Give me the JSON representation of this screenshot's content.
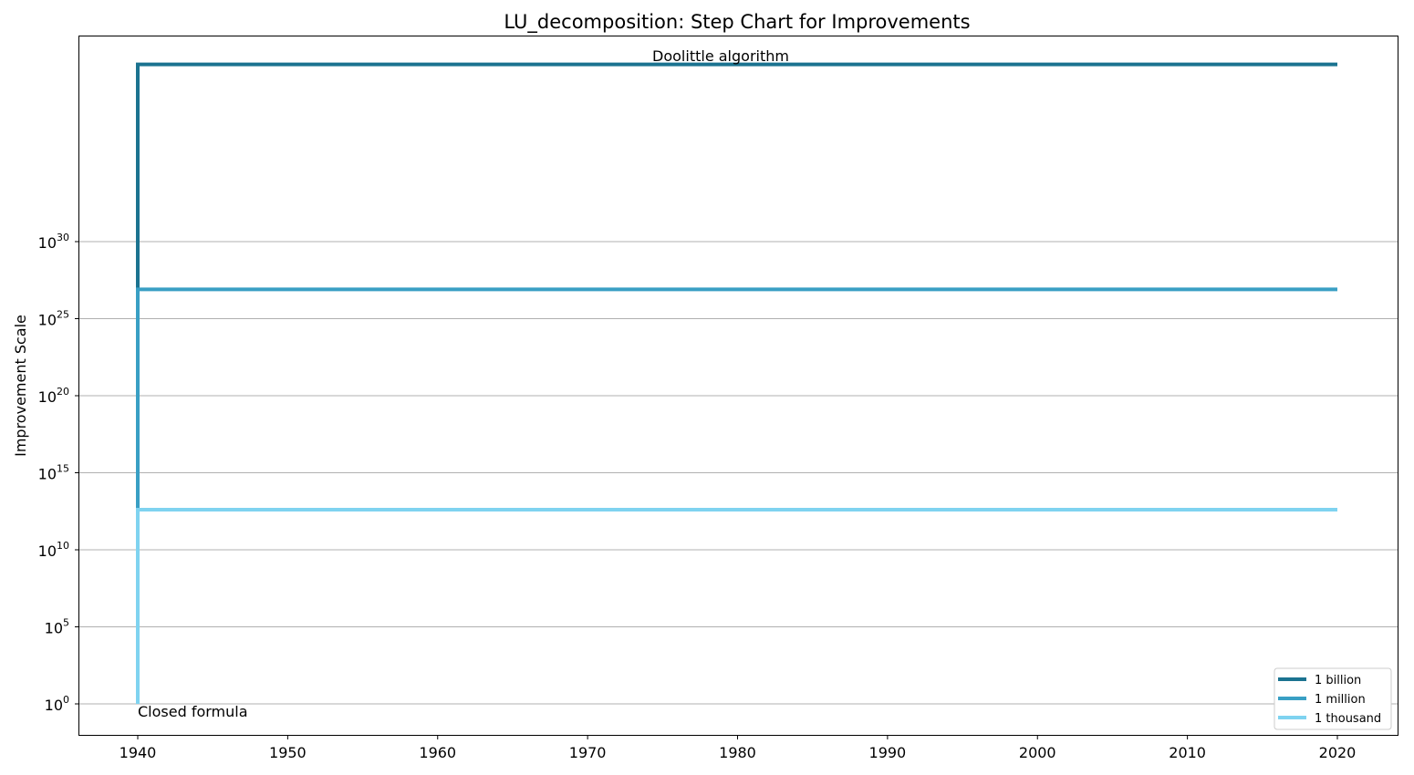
{
  "chart_data": {
    "type": "line",
    "title": "LU_decomposition: Step Chart for Improvements",
    "xlabel": "",
    "ylabel": "Improvement Scale",
    "xlim": [
      1936,
      2024
    ],
    "ylog_exponent_lim": [
      -2,
      41.5
    ],
    "y_scale": "log",
    "grid": "horizontal",
    "legend_position": "lower-right",
    "x_ticks": [
      1940,
      1950,
      1960,
      1970,
      1980,
      1990,
      2000,
      2010,
      2020
    ],
    "y_tick_exponents": [
      0,
      5,
      10,
      15,
      20,
      25,
      30
    ],
    "y_tick_base": "10",
    "series": [
      {
        "name": "1 billion",
        "color": "#1b7390",
        "points": [
          {
            "x": 1940,
            "y_exponent": 0
          },
          {
            "x": 1940,
            "y_exponent": 41.5
          },
          {
            "x": 2020,
            "y_exponent": 41.5
          }
        ]
      },
      {
        "name": "1 million",
        "color": "#399fc4",
        "points": [
          {
            "x": 1940,
            "y_exponent": 0
          },
          {
            "x": 1940,
            "y_exponent": 26.9
          },
          {
            "x": 2020,
            "y_exponent": 26.9
          }
        ]
      },
      {
        "name": "1 thousand",
        "color": "#7fd3f0",
        "points": [
          {
            "x": 1940,
            "y_exponent": 0
          },
          {
            "x": 1940,
            "y_exponent": 12.6
          },
          {
            "x": 2020,
            "y_exponent": 12.6
          }
        ]
      }
    ],
    "annotations": [
      {
        "text": "Doolittle algorithm",
        "x": 1968,
        "y_exponent": 41.5
      },
      {
        "text": "Closed formula",
        "x": 1940,
        "y_exponent": 0
      }
    ]
  }
}
